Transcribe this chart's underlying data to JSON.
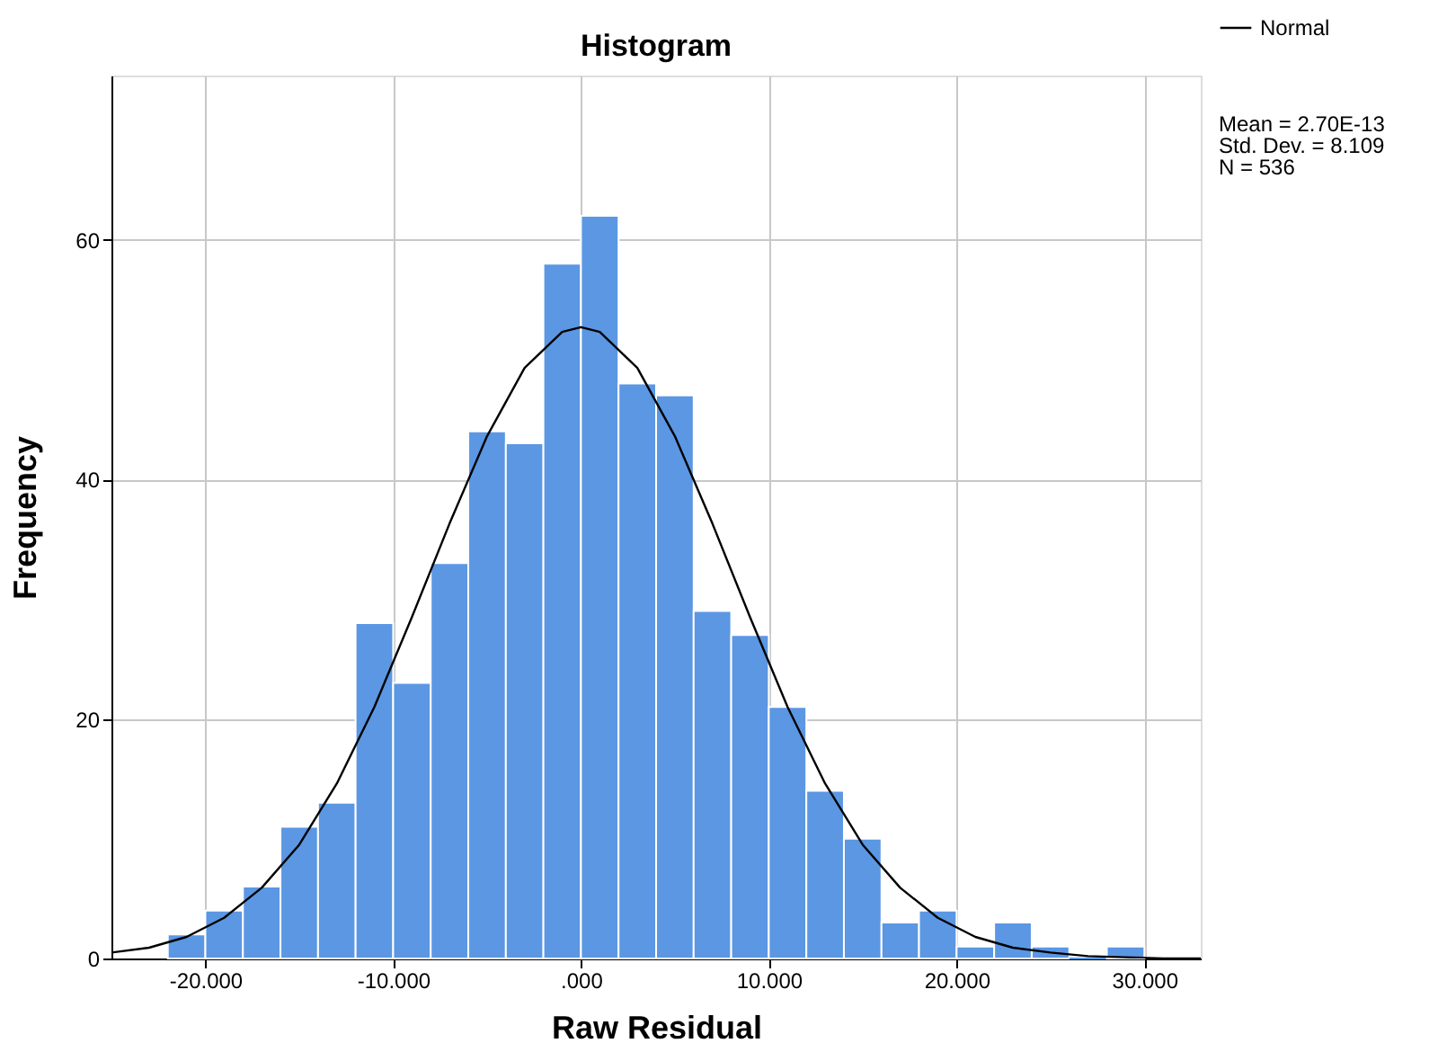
{
  "chart_data": {
    "type": "histogram",
    "title": "Histogram",
    "xlabel": "Raw Residual",
    "ylabel": "Frequency",
    "bins": [
      -22,
      -20,
      -18,
      -16,
      -14,
      -12,
      -10,
      -8,
      -6,
      -4,
      -2,
      0,
      2,
      4,
      6,
      8,
      10,
      12,
      14,
      16,
      18,
      20,
      22,
      24,
      26,
      28,
      30
    ],
    "values": [
      2,
      4,
      6,
      11,
      13,
      28,
      23,
      33,
      44,
      43,
      58,
      62,
      48,
      47,
      29,
      27,
      21,
      14,
      10,
      3,
      4,
      1,
      3,
      1,
      0,
      1
    ],
    "color": "#5b97e3",
    "series": [
      {
        "name": "Normal",
        "type": "line",
        "color": "#000000",
        "x": [
          -25,
          -23,
          -21,
          -19,
          -17,
          -15,
          -13,
          -11,
          -9,
          -7,
          -5,
          -3,
          -1,
          0,
          1,
          3,
          5,
          7,
          9,
          11,
          13,
          15,
          17,
          19,
          21,
          23,
          25,
          27,
          29,
          31,
          33
        ],
        "values": [
          0.5,
          0.9,
          1.8,
          3.4,
          5.9,
          9.5,
          14.6,
          21,
          28.5,
          36.3,
          43.6,
          49.3,
          52.3,
          52.7,
          52.3,
          49.3,
          43.6,
          36.3,
          28.5,
          21,
          14.6,
          9.5,
          5.9,
          3.4,
          1.8,
          0.9,
          0.5,
          0.2,
          0.1,
          0,
          0
        ]
      }
    ],
    "xlim": [
      -25,
      33
    ],
    "xticks": [
      {
        "value": -20,
        "label": "-20.000"
      },
      {
        "value": -10,
        "label": "-10.000"
      },
      {
        "value": 0,
        "label": ".000"
      },
      {
        "value": 10,
        "label": "10.000"
      },
      {
        "value": 20,
        "label": "20.000"
      },
      {
        "value": 30,
        "label": "30.000"
      }
    ],
    "ylim": [
      0,
      73.7
    ],
    "yticks": [
      0,
      20,
      40,
      60
    ],
    "grid": true,
    "legend": "top right",
    "annotations": [
      "Mean = 2.70E-13",
      "Std. Dev. = 8.109",
      "N = 536"
    ]
  }
}
